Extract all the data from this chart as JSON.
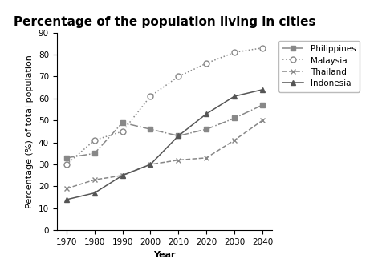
{
  "title": "Percentage of the population living in cities",
  "xlabel": "Year",
  "ylabel": "Percentage (%) of total population",
  "years": [
    1970,
    1980,
    1990,
    2000,
    2010,
    2020,
    2030,
    2040
  ],
  "series": {
    "Philippines": [
      33,
      35,
      49,
      46,
      43,
      46,
      51,
      57
    ],
    "Malaysia": [
      30,
      41,
      45,
      61,
      70,
      76,
      81,
      83
    ],
    "Thailand": [
      19,
      23,
      25,
      30,
      32,
      33,
      41,
      50
    ],
    "Indonesia": [
      14,
      17,
      25,
      30,
      43,
      53,
      61,
      64
    ]
  },
  "styles": {
    "Philippines": {
      "color": "#888888",
      "linestyle": "-.",
      "marker": "s",
      "markersize": 4,
      "markerfacecolor": "#888888"
    },
    "Malaysia": {
      "color": "#888888",
      "linestyle": ":",
      "marker": "o",
      "markersize": 5,
      "markerfacecolor": "white"
    },
    "Thailand": {
      "color": "#888888",
      "linestyle": "--",
      "marker": "x",
      "markersize": 5,
      "markerfacecolor": "#888888"
    },
    "Indonesia": {
      "color": "#555555",
      "linestyle": "-",
      "marker": "^",
      "markersize": 5,
      "markerfacecolor": "#555555"
    }
  },
  "ylim": [
    0,
    90
  ],
  "yticks": [
    0,
    10,
    20,
    30,
    40,
    50,
    60,
    70,
    80,
    90
  ],
  "background_color": "#ffffff",
  "title_fontsize": 11,
  "axis_label_fontsize": 8,
  "tick_fontsize": 7.5,
  "legend_fontsize": 7.5
}
